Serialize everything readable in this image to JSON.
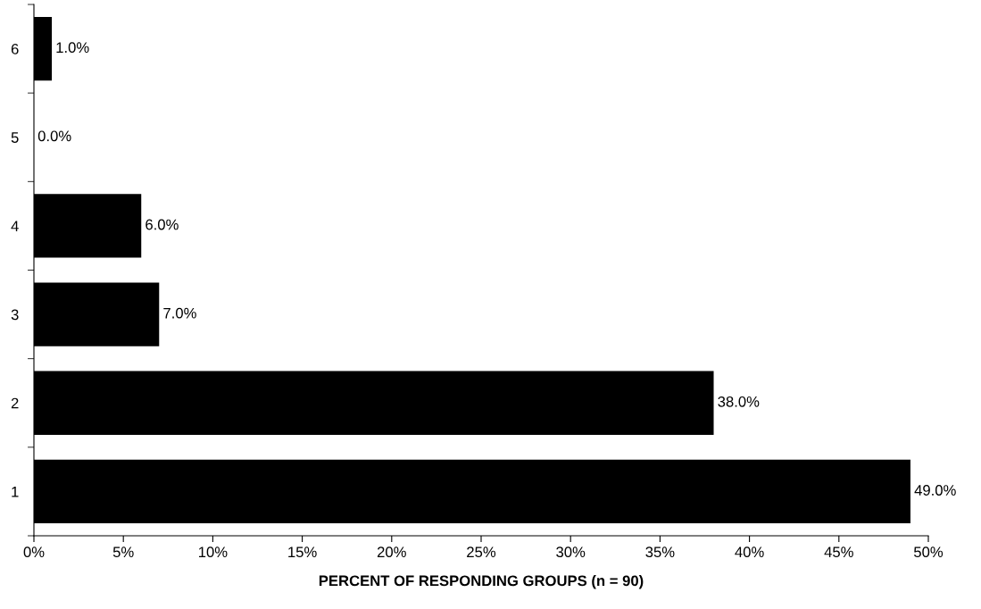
{
  "chart_data": {
    "type": "bar",
    "orientation": "horizontal",
    "xlabel": "PERCENT OF RESPONDING GROUPS (n = 90)",
    "categories": [
      "6",
      "5",
      "4",
      "3",
      "2",
      "1"
    ],
    "values": [
      1,
      0,
      6,
      7,
      38,
      49
    ],
    "value_labels": [
      "1.0%",
      "0.0%",
      "6.0%",
      "7.0%",
      "38.0%",
      "49.0%"
    ],
    "color": "#000000",
    "xlim": [
      0,
      50
    ],
    "xticks": [
      {
        "value": 0,
        "label": "0%"
      },
      {
        "value": 5,
        "label": "5%"
      },
      {
        "value": 10,
        "label": "10%"
      },
      {
        "value": 15,
        "label": "15%"
      },
      {
        "value": 20,
        "label": "20%"
      },
      {
        "value": 25,
        "label": "25%"
      },
      {
        "value": 30,
        "label": "30%"
      },
      {
        "value": 35,
        "label": "35%"
      },
      {
        "value": 40,
        "label": "40%"
      },
      {
        "value": 45,
        "label": "45%"
      },
      {
        "value": 50,
        "label": "50%"
      }
    ],
    "grid": false,
    "legend": false
  }
}
